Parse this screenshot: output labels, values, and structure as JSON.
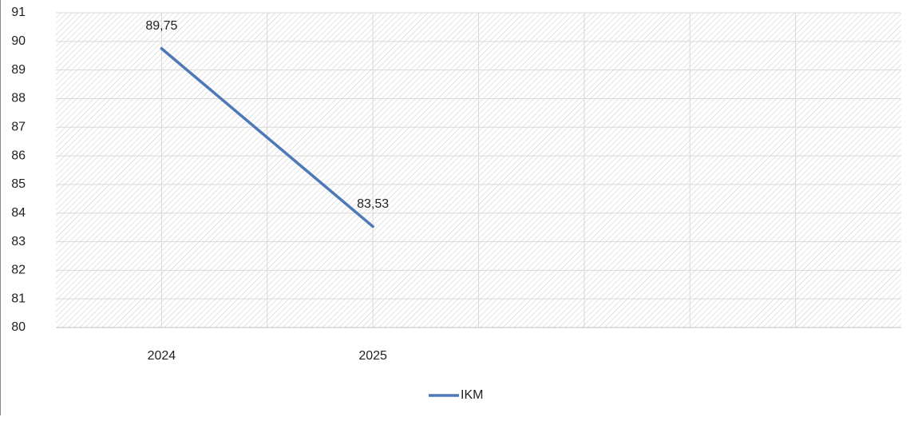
{
  "chart_data": {
    "type": "line",
    "categories": [
      "2024",
      "2025",
      null,
      null
    ],
    "series": [
      {
        "name": "IKM",
        "color": "#4e79b7",
        "values": [
          89.75,
          83.53,
          null,
          null
        ],
        "value_labels": [
          "89,75",
          "83,53",
          null,
          null
        ]
      }
    ],
    "ylim": [
      80,
      91
    ],
    "yticks": [
      80,
      81,
      82,
      83,
      84,
      85,
      86,
      87,
      88,
      89,
      90,
      91
    ],
    "grid": true,
    "legend": "bottom"
  }
}
